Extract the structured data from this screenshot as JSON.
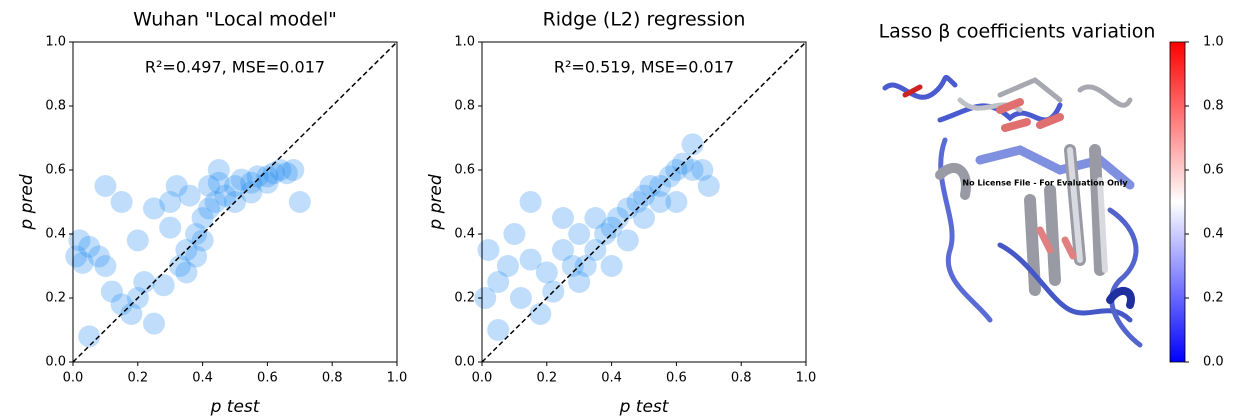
{
  "chart_data": [
    {
      "type": "scatter",
      "title": "Wuhan \"Local model\"",
      "annotation": "R²=0.497, MSE=0.017",
      "x_label": "p test",
      "y_label": "p pred",
      "color": "#1e88f0",
      "xlim": [
        0,
        1
      ],
      "ylim": [
        0,
        1
      ],
      "xticks": [
        {
          "value": 0,
          "label": "0.0"
        },
        {
          "value": 0.2,
          "label": "0.2"
        },
        {
          "value": 0.4,
          "label": "0.4"
        },
        {
          "value": 0.6,
          "label": "0.6"
        },
        {
          "value": 0.8,
          "label": "0.8"
        },
        {
          "value": 1,
          "label": "1.0"
        }
      ],
      "yticks": [
        {
          "value": 0,
          "label": "0.0"
        },
        {
          "value": 0.2,
          "label": "0.2"
        },
        {
          "value": 0.4,
          "label": "0.4"
        },
        {
          "value": 0.6,
          "label": "0.6"
        },
        {
          "value": 0.8,
          "label": "0.8"
        },
        {
          "value": 1,
          "label": "1.0"
        }
      ],
      "x": [
        0.01,
        0.02,
        0.03,
        0.05,
        0.08,
        0.1,
        0.12,
        0.15,
        0.18,
        0.2,
        0.22,
        0.25,
        0.28,
        0.3,
        0.32,
        0.33,
        0.35,
        0.36,
        0.38,
        0.4,
        0.42,
        0.44,
        0.45,
        0.47,
        0.5,
        0.52,
        0.55,
        0.57,
        0.6,
        0.62,
        0.64,
        0.66,
        0.68,
        0.35,
        0.38,
        0.4,
        0.42,
        0.3,
        0.25,
        0.15,
        0.05,
        0.45,
        0.5,
        0.55,
        0.6,
        0.7,
        0.1,
        0.2
      ],
      "values": [
        0.33,
        0.38,
        0.31,
        0.36,
        0.33,
        0.3,
        0.22,
        0.18,
        0.15,
        0.2,
        0.25,
        0.12,
        0.24,
        0.5,
        0.55,
        0.3,
        0.35,
        0.52,
        0.4,
        0.45,
        0.55,
        0.5,
        0.56,
        0.52,
        0.55,
        0.57,
        0.56,
        0.58,
        0.58,
        0.59,
        0.6,
        0.59,
        0.6,
        0.28,
        0.33,
        0.38,
        0.48,
        0.42,
        0.48,
        0.5,
        0.08,
        0.6,
        0.5,
        0.53,
        0.56,
        0.5,
        0.55,
        0.38
      ]
    },
    {
      "type": "scatter",
      "title": "Ridge (L2) regression",
      "annotation": "R²=0.519, MSE=0.017",
      "x_label": "p test",
      "y_label": "p pred",
      "color": "#1e88f0",
      "xlim": [
        0,
        1
      ],
      "ylim": [
        0,
        1
      ],
      "xticks": [
        {
          "value": 0,
          "label": "0.0"
        },
        {
          "value": 0.2,
          "label": "0.2"
        },
        {
          "value": 0.4,
          "label": "0.4"
        },
        {
          "value": 0.6,
          "label": "0.6"
        },
        {
          "value": 0.8,
          "label": "0.8"
        },
        {
          "value": 1,
          "label": "1.0"
        }
      ],
      "yticks": [
        {
          "value": 0,
          "label": "0.0"
        },
        {
          "value": 0.2,
          "label": "0.2"
        },
        {
          "value": 0.4,
          "label": "0.4"
        },
        {
          "value": 0.6,
          "label": "0.6"
        },
        {
          "value": 0.8,
          "label": "0.8"
        },
        {
          "value": 1,
          "label": "1.0"
        }
      ],
      "x": [
        0.01,
        0.02,
        0.05,
        0.08,
        0.1,
        0.12,
        0.15,
        0.18,
        0.2,
        0.22,
        0.25,
        0.28,
        0.3,
        0.32,
        0.35,
        0.38,
        0.4,
        0.42,
        0.45,
        0.48,
        0.5,
        0.52,
        0.55,
        0.58,
        0.6,
        0.62,
        0.65,
        0.68,
        0.3,
        0.35,
        0.4,
        0.45,
        0.5,
        0.55,
        0.6,
        0.25,
        0.15,
        0.05,
        0.7,
        0.65
      ],
      "values": [
        0.2,
        0.35,
        0.25,
        0.3,
        0.4,
        0.2,
        0.32,
        0.15,
        0.28,
        0.22,
        0.35,
        0.3,
        0.25,
        0.3,
        0.35,
        0.4,
        0.42,
        0.45,
        0.48,
        0.5,
        0.52,
        0.55,
        0.55,
        0.58,
        0.6,
        0.62,
        0.6,
        0.6,
        0.4,
        0.45,
        0.3,
        0.38,
        0.45,
        0.5,
        0.5,
        0.45,
        0.5,
        0.1,
        0.55,
        0.68
      ]
    },
    {
      "type": "colorbar",
      "title": "Lasso β coefficients variation",
      "annotation": "No License File - For Evaluation Only",
      "colormap": [
        "#0000ff",
        "#ffffff",
        "#ff0000"
      ],
      "ylim": [
        0,
        1
      ],
      "yticks": [
        {
          "value": 0,
          "label": "0.0"
        },
        {
          "value": 0.2,
          "label": "0.2"
        },
        {
          "value": 0.4,
          "label": "0.4"
        },
        {
          "value": 0.6,
          "label": "0.6"
        },
        {
          "value": 0.8,
          "label": "0.8"
        },
        {
          "value": 1,
          "label": "1.0"
        }
      ]
    }
  ]
}
